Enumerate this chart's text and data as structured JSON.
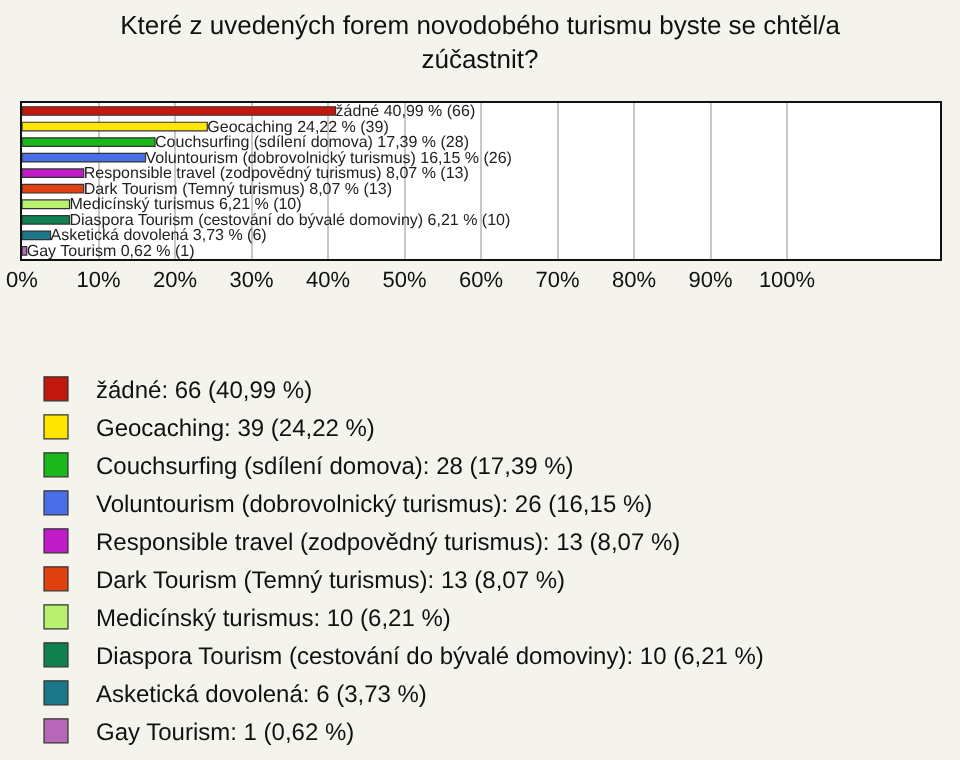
{
  "chart_data": {
    "type": "bar",
    "orientation": "horizontal",
    "title": "Které z uvedených forem novodobého turismu byste se chtěl/a zúčastnit?",
    "categories": [
      null,
      null,
      null,
      null,
      null,
      null,
      null,
      null,
      null,
      null
    ],
    "series": [
      {
        "name": "žádné: 66 (40,99 %)",
        "color": "#c0180c",
        "values": [
          40.99,
          null,
          null,
          null,
          null,
          null,
          null,
          null,
          null,
          null
        ],
        "value_labels": [
          "žádné 40,99 % (66)",
          null,
          null,
          null,
          null,
          null,
          null,
          null,
          null,
          null
        ]
      },
      {
        "name": "Geocaching: 39 (24,22 %)",
        "color": "#ffe600",
        "values": [
          null,
          24.22,
          null,
          null,
          null,
          null,
          null,
          null,
          null,
          null
        ],
        "value_labels": [
          null,
          "Geocaching 24,22 % (39)",
          null,
          null,
          null,
          null,
          null,
          null,
          null,
          null
        ]
      },
      {
        "name": "Couchsurfing (sdílení domova): 28 (17,39 %)",
        "color": "#1bb81b",
        "values": [
          null,
          null,
          17.39,
          null,
          null,
          null,
          null,
          null,
          null,
          null
        ],
        "value_labels": [
          null,
          null,
          "Couchsurfing (sdílení domova) 17,39 % (28)",
          null,
          null,
          null,
          null,
          null,
          null,
          null
        ]
      },
      {
        "name": "Voluntourism (dobrovolnický turismus): 26 (16,15 %)",
        "color": "#4a6ee8",
        "values": [
          null,
          null,
          null,
          16.15,
          null,
          null,
          null,
          null,
          null,
          null
        ],
        "value_labels": [
          null,
          null,
          null,
          "Voluntourism (dobrovolnický turismus) 16,15 % (26)",
          null,
          null,
          null,
          null,
          null,
          null
        ]
      },
      {
        "name": "Responsible travel (zodpovědný turismus): 13 (8,07 %)",
        "color": "#c01cc8",
        "values": [
          null,
          null,
          null,
          null,
          8.07,
          null,
          null,
          null,
          null,
          null
        ],
        "value_labels": [
          null,
          null,
          null,
          null,
          "Responsible travel (zodpovědný turismus) 8,07 % (13)",
          null,
          null,
          null,
          null,
          null
        ]
      },
      {
        "name": "Dark Tourism (Temný turismus): 13 (8,07 %)",
        "color": "#e04010",
        "values": [
          null,
          null,
          null,
          null,
          null,
          8.07,
          null,
          null,
          null,
          null
        ],
        "value_labels": [
          null,
          null,
          null,
          null,
          null,
          "Dark Tourism (Temný turismus) 8,07 % (13)",
          null,
          null,
          null,
          null
        ]
      },
      {
        "name": "Medicínský turismus: 10 (6,21 %)",
        "color": "#b8f070",
        "values": [
          null,
          null,
          null,
          null,
          null,
          null,
          6.21,
          null,
          null,
          null
        ],
        "value_labels": [
          null,
          null,
          null,
          null,
          null,
          null,
          "Medicínský turismus 6,21 % (10)",
          null,
          null,
          null
        ]
      },
      {
        "name": "Diaspora Tourism (cestování do bývalé domoviny): 10 (6,21 %)",
        "color": "#108050",
        "values": [
          null,
          null,
          null,
          null,
          null,
          null,
          null,
          6.21,
          null,
          null
        ],
        "value_labels": [
          null,
          null,
          null,
          null,
          null,
          null,
          null,
          "Diaspora Tourism (cestování do bývalé domoviny) 6,21 % (10)",
          null,
          null
        ]
      },
      {
        "name": "Asketická dovolená: 6 (3,73 %)",
        "color": "#1c7888",
        "values": [
          null,
          null,
          null,
          null,
          null,
          null,
          null,
          null,
          3.73,
          null
        ],
        "value_labels": [
          null,
          null,
          null,
          null,
          null,
          null,
          null,
          null,
          "Asketická dovolená 3,73 % (6)",
          null
        ]
      },
      {
        "name": "Gay Tourism: 1 (0,62 %)",
        "color": "#b868b8",
        "values": [
          null,
          null,
          null,
          null,
          null,
          null,
          null,
          null,
          null,
          0.62
        ],
        "value_labels": [
          null,
          null,
          null,
          null,
          null,
          null,
          null,
          null,
          null,
          "Gay Tourism 0,62 % (1)"
        ]
      }
    ],
    "xlim": [
      0,
      120
    ],
    "xticks": [
      {
        "value": 0,
        "label": "0%"
      },
      {
        "value": 10,
        "label": "10%"
      },
      {
        "value": 20,
        "label": "20%"
      },
      {
        "value": 30,
        "label": "30%"
      },
      {
        "value": 40,
        "label": "40%"
      },
      {
        "value": 50,
        "label": "50%"
      },
      {
        "value": 60,
        "label": "60%"
      },
      {
        "value": 70,
        "label": "70%"
      },
      {
        "value": 80,
        "label": "80%"
      },
      {
        "value": 90,
        "label": "90%"
      },
      {
        "value": 100,
        "label": "100%"
      }
    ],
    "grid": "x",
    "tick_labels": "x",
    "legend": "bottom"
  }
}
